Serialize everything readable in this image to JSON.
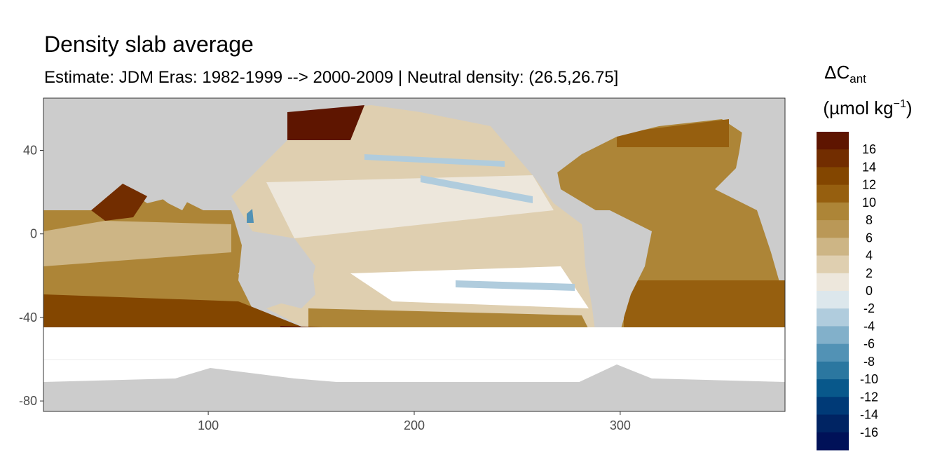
{
  "chart_data": {
    "type": "heatmap",
    "title": "Density slab average",
    "subtitle": "Estimate: JDM Eras: 1982-1999 --> 2000-2009 | Neutral density: (26.5,26.75]",
    "xlabel": "",
    "ylabel": "",
    "xlim": [
      20,
      380
    ],
    "ylim": [
      -85,
      65
    ],
    "x_ticks": [
      100,
      200,
      300
    ],
    "y_ticks": [
      40,
      0,
      -40,
      -80
    ],
    "grid": true,
    "legend": {
      "title_main": "ΔC",
      "title_sub": "ant",
      "units": "(µmol kg",
      "units_exp": "−1",
      "units_close": ")",
      "placement": "right",
      "breaks": [
        16,
        14,
        12,
        10,
        8,
        6,
        4,
        2,
        0,
        -2,
        -4,
        -6,
        -8,
        -10,
        -12,
        -14,
        -16
      ],
      "colors": [
        "#5e1500",
        "#722d00",
        "#834600",
        "#965f0f",
        "#ad8537",
        "#ba9857",
        "#cdb585",
        "#dfcfb0",
        "#ede7dc",
        "#dce7ec",
        "#b0ccdd",
        "#82b0ca",
        "#5292b5",
        "#2b77a0",
        "#08588b",
        "#003a77",
        "#002463",
        "#001158"
      ]
    },
    "land_color": "#cccccc",
    "na_color": "#ffffff"
  }
}
